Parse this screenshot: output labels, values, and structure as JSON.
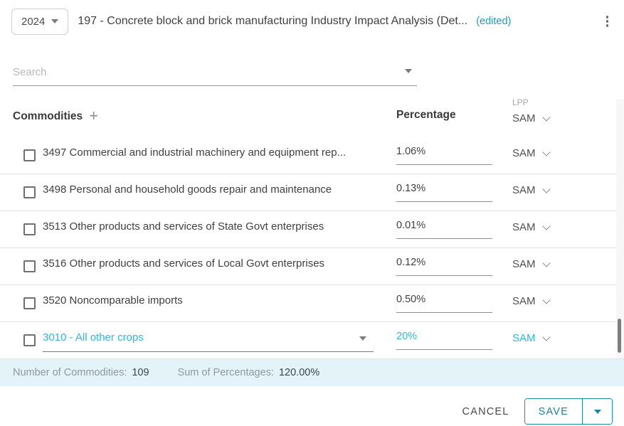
{
  "header": {
    "year": "2024",
    "title": "197 - Concrete block and brick manufacturing Industry Impact Analysis (Det...",
    "edited_badge": "(edited)"
  },
  "search": {
    "placeholder": "Search"
  },
  "table": {
    "columns": {
      "commodities": "Commodities",
      "percentage": "Percentage",
      "lpp": "LPP",
      "lpp_value": "SAM"
    },
    "rows": [
      {
        "code_name": "3497 Commercial and industrial machinery and equipment rep...",
        "percentage": "1.06%",
        "lpp": "SAM",
        "editable": false
      },
      {
        "code_name": "3498 Personal and household goods repair and maintenance",
        "percentage": "0.13%",
        "lpp": "SAM",
        "editable": false
      },
      {
        "code_name": "3513 Other products and services of State Govt enterprises",
        "percentage": "0.01%",
        "lpp": "SAM",
        "editable": false
      },
      {
        "code_name": "3516 Other products and services of Local Govt enterprises",
        "percentage": "0.12%",
        "lpp": "SAM",
        "editable": false
      },
      {
        "code_name": "3520 Noncomparable imports",
        "percentage": "0.50%",
        "lpp": "SAM",
        "editable": false
      },
      {
        "code_name": "3010 - All other crops",
        "percentage": "20%",
        "lpp": "SAM",
        "editable": true
      }
    ]
  },
  "footer": {
    "commodities_label": "Number of Commodities:",
    "commodities_value": "109",
    "sum_label": "Sum of Percentages:",
    "sum_value": "120.00%"
  },
  "actions": {
    "cancel": "CANCEL",
    "save": "SAVE"
  },
  "colors": {
    "accent": "#2db8d4",
    "accent_dark": "#16869c",
    "edited_badge": "#1d9cb5",
    "footer_bg": "#e3f3f8"
  }
}
